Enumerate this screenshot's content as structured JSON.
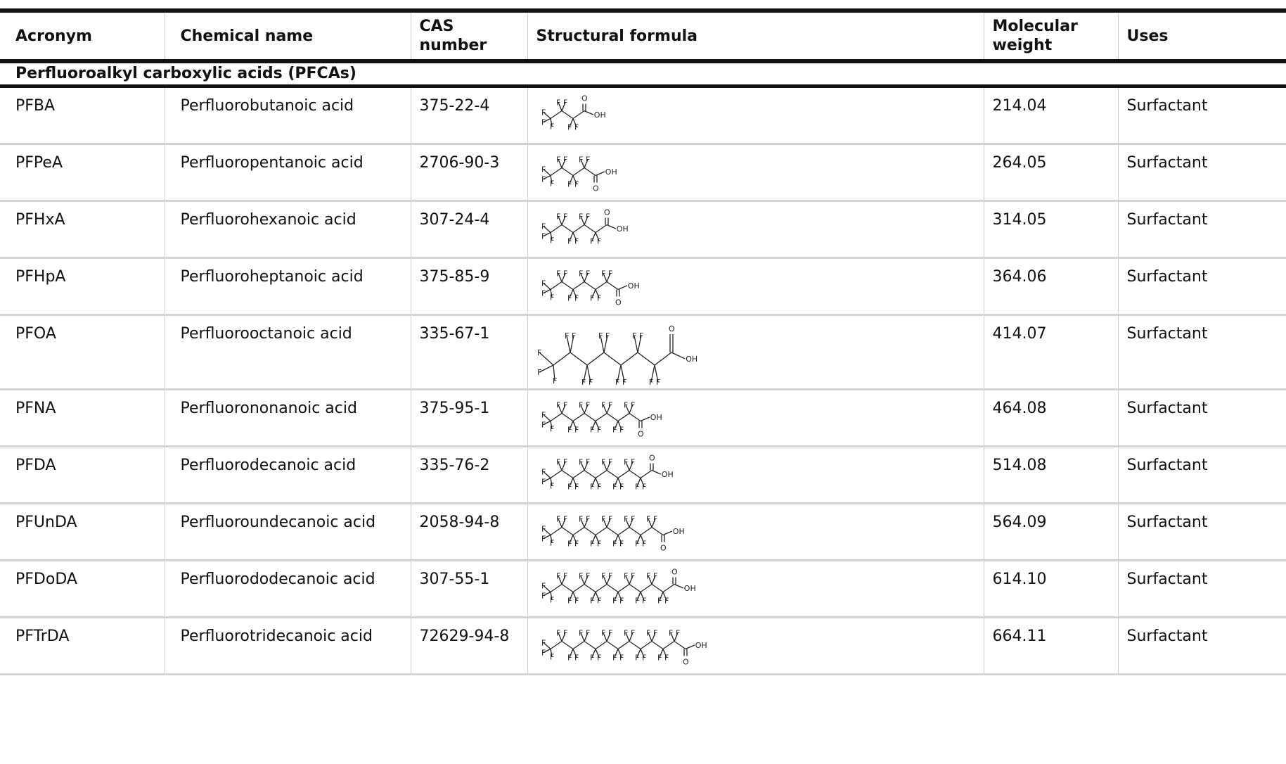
{
  "table": {
    "headers": {
      "acronym": "Acronym",
      "chemical_name": "Chemical name",
      "cas_line1": "CAS",
      "cas_line2": "number",
      "structural_formula": "Structural formula",
      "mw_line1": "Molecular",
      "mw_line2": "weight",
      "uses": "Uses"
    },
    "section": "Perfluoroalkyl carboxylic acids (PFCAs)",
    "rows": [
      {
        "acronym": "PFBA",
        "name": "Perfluorobutanoic acid",
        "cas": "375-22-4",
        "mw": "214.04",
        "uses": "Surfactant",
        "carbons": 4
      },
      {
        "acronym": "PFPeA",
        "name": "Perfluoropentanoic acid",
        "cas": "2706-90-3",
        "mw": "264.05",
        "uses": "Surfactant",
        "carbons": 5
      },
      {
        "acronym": "PFHxA",
        "name": "Perfluorohexanoic acid",
        "cas": "307-24-4",
        "mw": "314.05",
        "uses": "Surfactant",
        "carbons": 6
      },
      {
        "acronym": "PFHpA",
        "name": "Perfluoroheptanoic acid",
        "cas": "375-85-9",
        "mw": "364.06",
        "uses": "Surfactant",
        "carbons": 7
      },
      {
        "acronym": "PFOA",
        "name": "Perfluorooctanoic acid",
        "cas": "335-67-1",
        "mw": "414.07",
        "uses": "Surfactant",
        "carbons": 8
      },
      {
        "acronym": "PFNA",
        "name": "Perfluorononanoic acid",
        "cas": "375-95-1",
        "mw": "464.08",
        "uses": "Surfactant",
        "carbons": 9
      },
      {
        "acronym": "PFDA",
        "name": "Perfluorodecanoic acid",
        "cas": "335-76-2",
        "mw": "514.08",
        "uses": "Surfactant",
        "carbons": 10
      },
      {
        "acronym": "PFUnDA",
        "name": "Perfluoroundecanoic acid",
        "cas": "2058-94-8",
        "mw": "564.09",
        "uses": "Surfactant",
        "carbons": 11
      },
      {
        "acronym": "PFDoDA",
        "name": "Perfluorododecanoic acid",
        "cas": "307-55-1",
        "mw": "614.10",
        "uses": "Surfactant",
        "carbons": 12
      },
      {
        "acronym": "PFTrDA",
        "name": "Perfluorotridecanoic acid",
        "cas": "72629-94-8",
        "mw": "664.11",
        "uses": "Surfactant",
        "carbons": 13
      }
    ]
  },
  "structure_labels": {
    "fluorine": "F",
    "oxygen": "O",
    "hydroxyl": "OH"
  },
  "colors": {
    "rule": "#111111",
    "grid": "#d4d4d4",
    "watermark": "#e2e2e2"
  }
}
